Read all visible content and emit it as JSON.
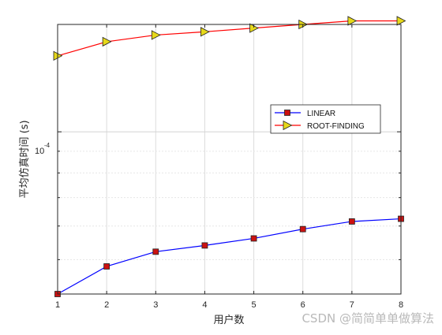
{
  "chart_data": {
    "type": "line",
    "xlabel": "用户数",
    "ylabel": "平均仿真时间 (s)",
    "y_scale": "log",
    "y_tick_label_text": "10",
    "y_tick_label_exp": "-4",
    "x_ticks": [
      "1",
      "2",
      "3",
      "4",
      "5",
      "6",
      "7",
      "8"
    ],
    "x": [
      1,
      2,
      3,
      4,
      5,
      6,
      7,
      8
    ],
    "xlim": [
      1,
      8
    ],
    "ylim": [
      4.15e-05,
      0.000179
    ],
    "grid": true,
    "legend_position": "right-center",
    "series": [
      {
        "name": "LINEAR",
        "color": "#0000ff",
        "marker": "square",
        "marker_color": "#cc1111",
        "values": [
          4.15e-05,
          4.82e-05,
          5.22e-05,
          5.4e-05,
          5.61e-05,
          5.9e-05,
          6.15e-05,
          6.24e-05
        ]
      },
      {
        "name": "ROOT-FINDING",
        "color": "#ff0000",
        "marker": "triangle-right",
        "marker_color": "#e6d81a",
        "values": [
          0.000151,
          0.000163,
          0.000169,
          0.000172,
          0.0001755,
          0.000179,
          0.0001825,
          0.0001825
        ]
      }
    ]
  },
  "watermark": "CSDN @简简单单做算法"
}
